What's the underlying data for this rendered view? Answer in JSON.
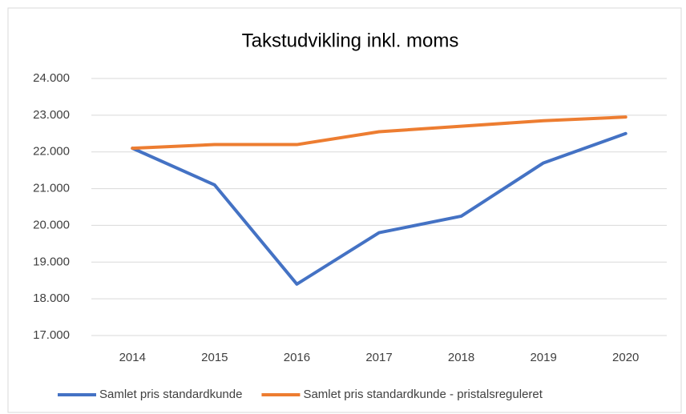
{
  "chart_data": {
    "type": "line",
    "title": "Takstudvikling inkl. moms",
    "categories": [
      "2014",
      "2015",
      "2016",
      "2017",
      "2018",
      "2019",
      "2020"
    ],
    "series": [
      {
        "name": "Samlet pris standardkunde",
        "color": "#4472c4",
        "values": [
          22100,
          21100,
          18400,
          19800,
          20250,
          21700,
          22500
        ]
      },
      {
        "name": "Samlet pris standardkunde - pristalsreguleret",
        "color": "#ed7d31",
        "values": [
          22100,
          22200,
          22200,
          22550,
          22700,
          22850,
          22950
        ]
      }
    ],
    "ylim": [
      17000,
      24000
    ],
    "yticks": [
      {
        "value": 17000,
        "label": "17.000"
      },
      {
        "value": 18000,
        "label": "18.000"
      },
      {
        "value": 19000,
        "label": "19.000"
      },
      {
        "value": 20000,
        "label": "20.000"
      },
      {
        "value": 21000,
        "label": "21.000"
      },
      {
        "value": 22000,
        "label": "22.000"
      },
      {
        "value": 23000,
        "label": "23.000"
      },
      {
        "value": 24000,
        "label": "24.000"
      }
    ],
    "grid": true,
    "legend": "bottom"
  }
}
